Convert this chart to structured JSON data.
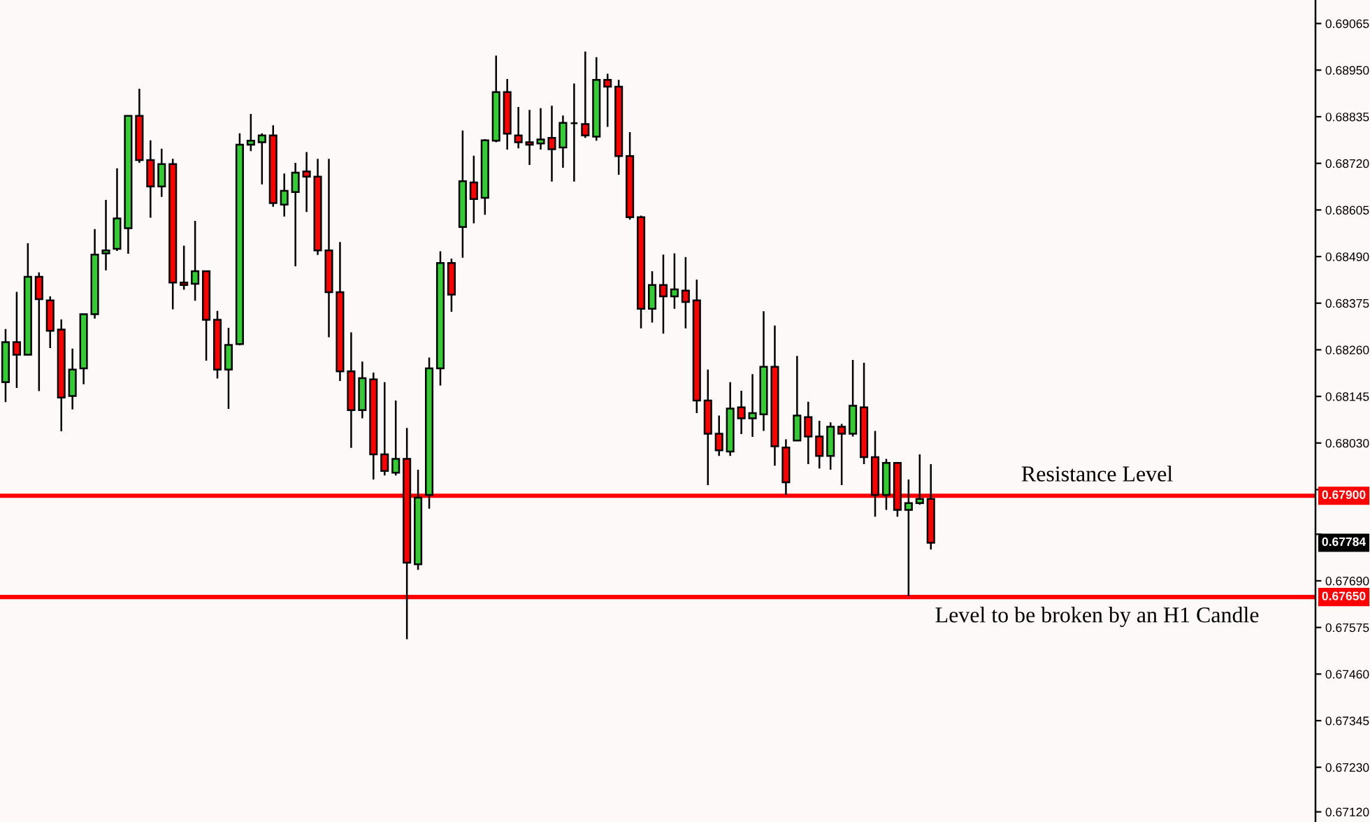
{
  "chart_data": {
    "type": "candlestick",
    "categories": [
      null,
      null,
      null,
      null,
      null,
      null,
      null,
      null,
      null,
      null,
      null,
      null,
      null,
      null,
      null,
      null,
      null,
      null,
      null,
      null,
      null,
      null,
      null,
      null,
      null,
      null,
      null,
      null,
      null,
      null,
      null,
      null,
      null,
      null,
      null,
      null,
      null,
      null,
      null,
      null,
      null,
      null,
      null,
      null,
      null,
      null,
      null,
      null,
      null,
      null,
      null,
      null,
      null,
      null,
      null,
      null,
      null,
      null,
      null,
      null,
      null,
      null,
      null,
      null,
      null,
      null,
      null,
      null,
      null,
      null,
      null,
      null,
      null,
      null,
      null,
      null,
      null,
      null,
      null,
      null,
      null,
      null,
      null,
      null,
      null,
      null,
      null,
      null,
      null,
      null,
      null,
      null,
      null,
      null,
      null,
      null,
      null,
      null,
      null,
      null,
      null,
      null,
      null,
      null,
      null,
      null,
      null,
      null,
      null,
      null,
      null,
      null,
      null,
      null,
      null,
      null,
      null,
      null
    ],
    "ohlc": [
      [
        0.6818,
        0.68311,
        0.68131,
        0.68279
      ],
      [
        0.68279,
        0.68403,
        0.68166,
        0.68248
      ],
      [
        0.68248,
        0.68523,
        0.68248,
        0.6844
      ],
      [
        0.6844,
        0.68451,
        0.68158,
        0.68385
      ],
      [
        0.68382,
        0.68392,
        0.68264,
        0.68307
      ],
      [
        0.6831,
        0.68335,
        0.68059,
        0.68142
      ],
      [
        0.68146,
        0.68263,
        0.68113,
        0.68211
      ],
      [
        0.68214,
        0.6835,
        0.68175,
        0.68348
      ],
      [
        0.68348,
        0.68558,
        0.68337,
        0.68495
      ],
      [
        0.68498,
        0.6863,
        0.68456,
        0.68505
      ],
      [
        0.68509,
        0.68708,
        0.68504,
        0.68584
      ],
      [
        0.6856,
        0.68837,
        0.68497,
        0.68837
      ],
      [
        0.68837,
        0.68904,
        0.68721,
        0.68728
      ],
      [
        0.68728,
        0.68777,
        0.68586,
        0.68663
      ],
      [
        0.68663,
        0.68756,
        0.68637,
        0.68718
      ],
      [
        0.68718,
        0.68731,
        0.6836,
        0.68426
      ],
      [
        0.68426,
        0.68517,
        0.68408,
        0.6842
      ],
      [
        0.68423,
        0.68578,
        0.68381,
        0.68454
      ],
      [
        0.68454,
        0.68454,
        0.68233,
        0.68334
      ],
      [
        0.68334,
        0.68356,
        0.68189,
        0.68211
      ],
      [
        0.68211,
        0.68314,
        0.68114,
        0.68272
      ],
      [
        0.68274,
        0.68794,
        0.68271,
        0.68766
      ],
      [
        0.68766,
        0.68842,
        0.6875,
        0.68776
      ],
      [
        0.68772,
        0.68794,
        0.68668,
        0.68789
      ],
      [
        0.68789,
        0.68814,
        0.68613,
        0.68622
      ],
      [
        0.68618,
        0.68695,
        0.68589,
        0.68652
      ],
      [
        0.68649,
        0.68721,
        0.68466,
        0.68697
      ],
      [
        0.687,
        0.68748,
        0.686,
        0.68687
      ],
      [
        0.68687,
        0.68731,
        0.68494,
        0.68505
      ],
      [
        0.68505,
        0.68731,
        0.68291,
        0.68402
      ],
      [
        0.68402,
        0.68526,
        0.68183,
        0.68207
      ],
      [
        0.68207,
        0.68303,
        0.68018,
        0.68111
      ],
      [
        0.68111,
        0.68231,
        0.68091,
        0.6819
      ],
      [
        0.68187,
        0.68204,
        0.6794,
        0.68002
      ],
      [
        0.68002,
        0.6818,
        0.6795,
        0.67961
      ],
      [
        0.67957,
        0.68135,
        0.6795,
        0.67991
      ],
      [
        0.67991,
        0.68067,
        0.67546,
        0.67735
      ],
      [
        0.67731,
        0.67964,
        0.67717,
        0.67895
      ],
      [
        0.67902,
        0.68241,
        0.67868,
        0.68214
      ],
      [
        0.68214,
        0.68503,
        0.68172,
        0.68474
      ],
      [
        0.68474,
        0.68485,
        0.68354,
        0.68396
      ],
      [
        0.68563,
        0.68801,
        0.68487,
        0.68676
      ],
      [
        0.68673,
        0.68739,
        0.68572,
        0.68632
      ],
      [
        0.68635,
        0.6878,
        0.68593,
        0.68777
      ],
      [
        0.68776,
        0.68986,
        0.68772,
        0.68896
      ],
      [
        0.68896,
        0.68928,
        0.68754,
        0.68793
      ],
      [
        0.68789,
        0.68859,
        0.68757,
        0.68772
      ],
      [
        0.68772,
        0.68852,
        0.68716,
        0.68766
      ],
      [
        0.68769,
        0.68856,
        0.68754,
        0.68779
      ],
      [
        0.68783,
        0.68862,
        0.68675,
        0.68755
      ],
      [
        0.68759,
        0.68838,
        0.68709,
        0.6882
      ],
      [
        0.68819,
        0.68917,
        0.68675,
        0.68819
      ],
      [
        0.68817,
        0.68996,
        0.68783,
        0.68789
      ],
      [
        0.68786,
        0.68982,
        0.68776,
        0.68926
      ],
      [
        0.68926,
        0.68941,
        0.6881,
        0.68909
      ],
      [
        0.68909,
        0.68926,
        0.68692,
        0.68738
      ],
      [
        0.68738,
        0.68797,
        0.68581,
        0.68587
      ],
      [
        0.68587,
        0.68591,
        0.68313,
        0.68361
      ],
      [
        0.68361,
        0.68454,
        0.68327,
        0.6842
      ],
      [
        0.6842,
        0.68495,
        0.683,
        0.68392
      ],
      [
        0.68392,
        0.68498,
        0.68361,
        0.68409
      ],
      [
        0.68406,
        0.68489,
        0.68313,
        0.68378
      ],
      [
        0.68382,
        0.68433,
        0.68104,
        0.68135
      ],
      [
        0.68135,
        0.68211,
        0.67926,
        0.68053
      ],
      [
        0.68053,
        0.68098,
        0.67998,
        0.68012
      ],
      [
        0.68009,
        0.6818,
        0.67998,
        0.68115
      ],
      [
        0.68118,
        0.68159,
        0.68052,
        0.68091
      ],
      [
        0.68091,
        0.682,
        0.68045,
        0.68104
      ],
      [
        0.68101,
        0.68355,
        0.6806,
        0.68218
      ],
      [
        0.68218,
        0.6832,
        0.67974,
        0.68022
      ],
      [
        0.68019,
        0.68039,
        0.67902,
        0.67933
      ],
      [
        0.68036,
        0.68245,
        0.68036,
        0.68098
      ],
      [
        0.68094,
        0.68132,
        0.67978,
        0.68046
      ],
      [
        0.68046,
        0.68085,
        0.67967,
        0.67998
      ],
      [
        0.67998,
        0.68081,
        0.67964,
        0.6807
      ],
      [
        0.6807,
        0.68077,
        0.67926,
        0.68053
      ],
      [
        0.68053,
        0.68235,
        0.68046,
        0.68122
      ],
      [
        0.68118,
        0.68228,
        0.67978,
        0.67995
      ],
      [
        0.67995,
        0.6806,
        0.67848,
        0.67902
      ],
      [
        0.67902,
        0.67991,
        0.67865,
        0.67981
      ],
      [
        0.67981,
        0.67981,
        0.67848,
        0.67865
      ],
      [
        0.67865,
        0.6794,
        0.67652,
        0.67882
      ],
      [
        0.67882,
        0.68002,
        0.67878,
        0.67892
      ],
      [
        0.67892,
        0.67978,
        0.67767,
        0.67784
      ],
      null,
      null,
      null,
      null,
      null,
      null,
      null,
      null,
      null,
      null,
      null,
      null,
      null,
      null,
      null,
      null,
      null,
      null,
      null,
      null,
      null,
      null,
      null,
      null,
      null,
      null,
      null,
      null,
      null,
      null,
      null,
      null,
      null,
      null
    ],
    "colors": [
      "#32cd32",
      "#ff0000",
      "#32cd32",
      "#ff0000",
      "#ff0000",
      "#ff0000",
      "#32cd32",
      "#32cd32",
      "#32cd32",
      "#32cd32",
      "#32cd32",
      "#32cd32",
      "#ff0000",
      "#ff0000",
      "#32cd32",
      "#ff0000",
      "#ff0000",
      "#32cd32",
      "#ff0000",
      "#ff0000",
      "#32cd32",
      "#32cd32",
      "#32cd32",
      "#32cd32",
      "#ff0000",
      "#32cd32",
      "#32cd32",
      "#ff0000",
      "#ff0000",
      "#ff0000",
      "#ff0000",
      "#ff0000",
      "#32cd32",
      "#ff0000",
      "#ff0000",
      "#32cd32",
      "#ff0000",
      "#32cd32",
      "#32cd32",
      "#32cd32",
      "#ff0000",
      "#32cd32",
      "#ff0000",
      "#32cd32",
      "#32cd32",
      "#ff0000",
      "#ff0000",
      "#ff0000",
      "#32cd32",
      "#ff0000",
      "#32cd32",
      "#000000",
      "#ff0000",
      "#32cd32",
      "#ff0000",
      "#ff0000",
      "#ff0000",
      "#ff0000",
      "#32cd32",
      "#ff0000",
      "#32cd32",
      "#ff0000",
      "#ff0000",
      "#ff0000",
      "#ff0000",
      "#32cd32",
      "#ff0000",
      "#32cd32",
      "#32cd32",
      "#ff0000",
      "#ff0000",
      "#32cd32",
      "#ff0000",
      "#ff0000",
      "#32cd32",
      "#ff0000",
      "#32cd32",
      "#ff0000",
      "#ff0000",
      "#32cd32",
      "#ff0000",
      "#32cd32",
      "#32cd32",
      "#ff0000",
      null,
      null,
      null,
      null,
      null,
      null,
      null,
      null,
      null,
      null,
      null,
      null,
      null,
      null,
      null,
      null,
      null,
      null,
      null,
      null,
      null,
      null,
      null,
      null,
      null,
      null,
      null,
      null,
      null,
      null,
      null,
      null,
      null,
      null
    ],
    "ylim": [
      0.67095,
      0.69123
    ],
    "yticks": [
      0.69065,
      {
        "value": 0.6895,
        "label": "0.68950"
      },
      0.68835,
      {
        "value": 0.6872,
        "label": "0.68720"
      },
      0.68605,
      {
        "value": 0.6849,
        "label": "0.68490"
      },
      0.68375,
      {
        "value": 0.6826,
        "label": "0.68260"
      },
      0.68145,
      {
        "value": 0.6803,
        "label": "0.68030"
      },
      {
        "value": 0.67915,
        "label": null
      },
      {
        "value": 0.67805,
        "label": null
      },
      {
        "value": 0.6769,
        "label": "0.67690"
      },
      0.67575,
      {
        "value": 0.6746,
        "label": "0.67460"
      },
      0.67345,
      {
        "value": 0.6723,
        "label": "0.67230"
      },
      {
        "value": 0.6712,
        "label": "0.67120"
      }
    ],
    "tick_labels": "y",
    "ref_lines": [
      {
        "axis": "y",
        "value": 0.679,
        "label": "Resistance Level",
        "color": "#ff0000",
        "line_style": "solid"
      },
      {
        "axis": "y",
        "value": 0.6765,
        "label": "Level to be broken by an H1 Candle",
        "color": "#ff0000",
        "line_style": "solid"
      }
    ],
    "annotations": [
      {
        "text": "0.67900",
        "y": 0.679
      },
      {
        "text": "0.67784",
        "y": 0.67784
      },
      {
        "text": "0.67650",
        "y": 0.6765
      }
    ]
  }
}
